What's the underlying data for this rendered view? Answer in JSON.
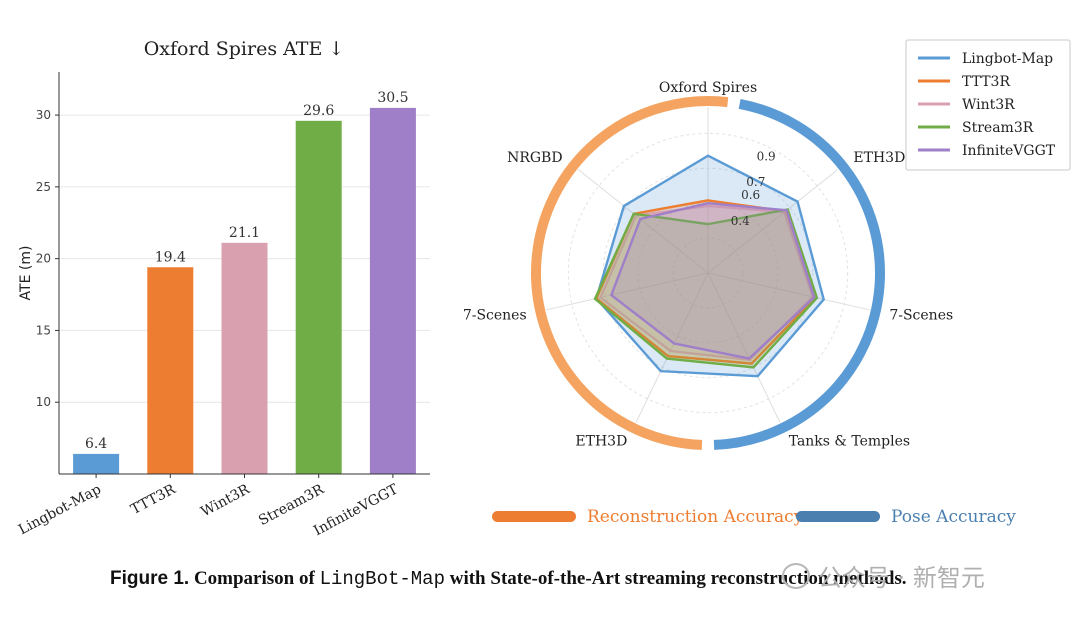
{
  "chart_data": [
    {
      "type": "bar",
      "title": "Oxford Spires ATE ↓",
      "ylabel": "ATE (m)",
      "categories": [
        "Lingbot-Map",
        "TTT3R",
        "Wint3R",
        "Stream3R",
        "InfiniteVGGT"
      ],
      "values": [
        6.4,
        19.4,
        21.1,
        29.6,
        30.5
      ],
      "value_labels": [
        "6.4",
        "19.4",
        "21.1",
        "29.6",
        "30.5"
      ],
      "colors": [
        "#5b9bd5",
        "#ed7d31",
        "#d9a0b0",
        "#70ad47",
        "#9e7fc8"
      ],
      "ylim": [
        5,
        33
      ],
      "yticks": [
        10,
        15,
        20,
        25,
        30
      ],
      "grid": true
    },
    {
      "type": "radar",
      "axes": [
        "Oxford Spires",
        "ETH3D",
        "7-Scenes",
        "Tanks & Temples",
        "ETH3D",
        "7-Scenes",
        "NRGBD"
      ],
      "rlim": [
        0,
        1.0
      ],
      "rticks": [
        0.4,
        0.6,
        0.7,
        0.9
      ],
      "series": [
        {
          "name": "Lingbot-Map",
          "color": "#5b9bd5",
          "values": [
            0.84,
            0.82,
            0.85,
            0.82,
            0.78,
            0.82,
            0.77
          ]
        },
        {
          "name": "TTT3R",
          "color": "#ed7d31",
          "values": [
            0.52,
            0.71,
            0.79,
            0.72,
            0.66,
            0.82,
            0.68
          ]
        },
        {
          "name": "Wint3R",
          "color": "#d9a0b0",
          "values": [
            0.48,
            0.7,
            0.77,
            0.69,
            0.62,
            0.79,
            0.66
          ]
        },
        {
          "name": "Stream3R",
          "color": "#70ad47",
          "values": [
            0.35,
            0.73,
            0.8,
            0.75,
            0.68,
            0.83,
            0.68
          ]
        },
        {
          "name": "InfiniteVGGT",
          "color": "#9e7fc8",
          "values": [
            0.5,
            0.72,
            0.78,
            0.68,
            0.56,
            0.71,
            0.62
          ]
        }
      ],
      "legend_position": "top-right",
      "ring_groups": [
        {
          "name": "Reconstruction Accuracy",
          "color": "#ed7d31",
          "band_color": "#f4a460",
          "axes": [
            "ETH3D",
            "7-Scenes",
            "NRGBD"
          ]
        },
        {
          "name": "Pose Accuracy",
          "color": "#4a7fb0",
          "band_color": "#5b9bd5",
          "axes": [
            "Oxford Spires",
            "ETH3D",
            "7-Scenes",
            "Tanks & Temples"
          ]
        }
      ]
    }
  ],
  "caption": {
    "label": "Figure 1.",
    "text_before": "Comparison of ",
    "mono": "LingBot-Map",
    "text_after": " with State-of-the-Art streaming reconstruction methods."
  },
  "watermark": "公众号 · 新智元"
}
